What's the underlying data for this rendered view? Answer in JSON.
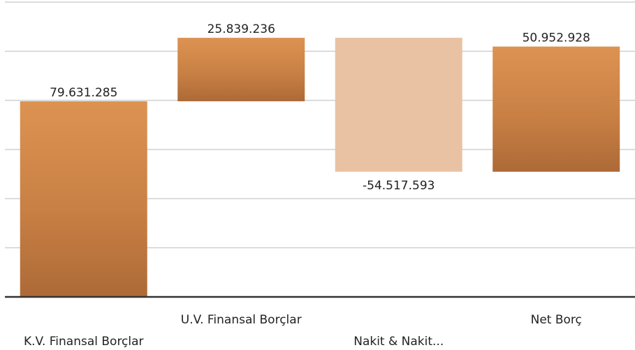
{
  "chart_data": {
    "type": "waterfall",
    "categories": [
      "K.V. Finansal Borçlar",
      "U.V. Finansal Borçlar",
      "Nakit & Nakit...",
      "Net Borç"
    ],
    "values": [
      79631285,
      25839236,
      -54517593,
      50952928
    ],
    "value_labels": [
      "79.631.285",
      "25.839.236",
      "-54.517.593",
      "50.952.928"
    ],
    "colors": {
      "increase": "#d48a4b",
      "decrease": "#e9c2a3"
    },
    "ylim": [
      0,
      120000000
    ],
    "yticks": [
      0,
      20000000,
      40000000,
      60000000,
      80000000,
      100000000,
      120000000
    ],
    "grid": true
  }
}
